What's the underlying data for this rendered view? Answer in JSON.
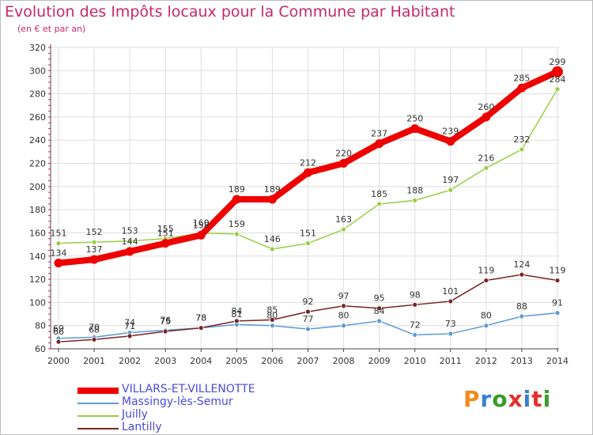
{
  "title": "Evolution des Impôts locaux pour la Commune par Habitant",
  "subtitle": "(en € et par an)",
  "logo": {
    "text": "Proxiti",
    "colors": [
      "#f08c1e",
      "#3a7fd8",
      "#3a9b2a",
      "#e0302c",
      "#3a7fd8",
      "#e0302c",
      "#3a9b2a"
    ]
  },
  "chart_data": {
    "type": "line",
    "x": [
      "2000",
      "2001",
      "2002",
      "2003",
      "2004",
      "2005",
      "2006",
      "2007",
      "2008",
      "2009",
      "2010",
      "2011",
      "2012",
      "2013",
      "2014"
    ],
    "ylim": [
      60,
      320
    ],
    "yticks": [
      60,
      80,
      100,
      120,
      140,
      160,
      180,
      200,
      220,
      240,
      260,
      280,
      300,
      320
    ],
    "grid": true,
    "legend_position": "bottom-left",
    "series": [
      {
        "name": "VILLARS-ET-VILLENOTTE",
        "color": "#ee0000",
        "width": 8,
        "values": [
          134,
          137,
          144,
          151,
          158,
          189,
          189,
          212,
          220,
          237,
          250,
          239,
          260,
          285,
          299
        ],
        "labels": [
          "134",
          "137",
          "144",
          "151",
          "158",
          "189",
          "189",
          "212",
          "220",
          "237",
          "250",
          "239",
          "260",
          "285",
          "299"
        ]
      },
      {
        "name": "Massingy-lès-Semur",
        "color": "#5b9bd5",
        "width": 1.5,
        "values": [
          69,
          70,
          74,
          76,
          78,
          81,
          80,
          77,
          80,
          84,
          72,
          73,
          80,
          88,
          91
        ],
        "labels": [
          "69",
          "70",
          "74",
          "76",
          "78",
          "81",
          "80",
          "77",
          "80",
          "84",
          "72",
          "73",
          "80",
          "88",
          "91"
        ]
      },
      {
        "name": "Juilly",
        "color": "#9acd45",
        "width": 1.5,
        "values": [
          151,
          152,
          153,
          155,
          160,
          159,
          146,
          151,
          163,
          185,
          188,
          197,
          216,
          232,
          284
        ],
        "labels": [
          "151",
          "152",
          "153",
          "155",
          "160",
          "159",
          "146",
          "151",
          "163",
          "185",
          "188",
          "197",
          "216",
          "232",
          "284"
        ]
      },
      {
        "name": "Lantilly",
        "color": "#7a2424",
        "width": 1.5,
        "values": [
          66,
          68,
          71,
          75,
          78,
          84,
          85,
          92,
          97,
          95,
          98,
          101,
          119,
          124,
          119
        ],
        "labels": [
          "66",
          "68",
          "71",
          "75",
          "78",
          "84",
          "85",
          "92",
          "97",
          "95",
          "98",
          "101",
          "119",
          "124",
          "119"
        ]
      }
    ]
  }
}
